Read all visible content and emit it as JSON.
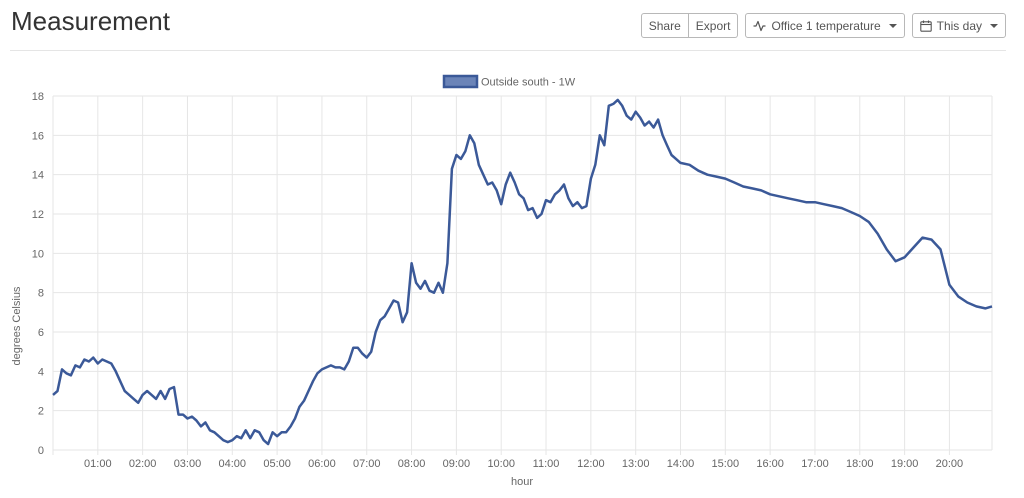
{
  "header": {
    "title": "Measurement",
    "share_label": "Share",
    "export_label": "Export",
    "sensor_label": "Office 1 temperature",
    "range_label": "This day"
  },
  "chart_data": {
    "type": "line",
    "title": "",
    "xlabel": "hour",
    "ylabel": "degrees Celsius",
    "xlim": [
      0,
      20.95
    ],
    "ylim": [
      0,
      18
    ],
    "yticks": [
      0,
      2,
      4,
      6,
      8,
      10,
      12,
      14,
      16,
      18
    ],
    "xticks": [
      "01:00",
      "02:00",
      "03:00",
      "04:00",
      "05:00",
      "06:00",
      "07:00",
      "08:00",
      "09:00",
      "10:00",
      "11:00",
      "12:00",
      "13:00",
      "14:00",
      "15:00",
      "16:00",
      "17:00",
      "18:00",
      "19:00",
      "20:00"
    ],
    "grid": true,
    "legend": "top-center",
    "series": [
      {
        "name": "Outside south - 1W",
        "color": "#3b5998",
        "points": [
          [
            0.0,
            2.8
          ],
          [
            0.1,
            3.0
          ],
          [
            0.2,
            4.1
          ],
          [
            0.3,
            3.9
          ],
          [
            0.4,
            3.8
          ],
          [
            0.5,
            4.3
          ],
          [
            0.6,
            4.2
          ],
          [
            0.7,
            4.6
          ],
          [
            0.8,
            4.5
          ],
          [
            0.9,
            4.7
          ],
          [
            1.0,
            4.4
          ],
          [
            1.1,
            4.6
          ],
          [
            1.2,
            4.5
          ],
          [
            1.3,
            4.4
          ],
          [
            1.4,
            4.0
          ],
          [
            1.5,
            3.5
          ],
          [
            1.6,
            3.0
          ],
          [
            1.7,
            2.8
          ],
          [
            1.8,
            2.6
          ],
          [
            1.9,
            2.4
          ],
          [
            2.0,
            2.8
          ],
          [
            2.1,
            3.0
          ],
          [
            2.2,
            2.8
          ],
          [
            2.3,
            2.6
          ],
          [
            2.4,
            3.0
          ],
          [
            2.5,
            2.6
          ],
          [
            2.6,
            3.1
          ],
          [
            2.7,
            3.2
          ],
          [
            2.8,
            1.8
          ],
          [
            2.9,
            1.8
          ],
          [
            3.0,
            1.6
          ],
          [
            3.1,
            1.7
          ],
          [
            3.2,
            1.5
          ],
          [
            3.3,
            1.2
          ],
          [
            3.4,
            1.4
          ],
          [
            3.5,
            1.0
          ],
          [
            3.6,
            0.9
          ],
          [
            3.7,
            0.7
          ],
          [
            3.8,
            0.5
          ],
          [
            3.9,
            0.4
          ],
          [
            4.0,
            0.5
          ],
          [
            4.1,
            0.7
          ],
          [
            4.2,
            0.6
          ],
          [
            4.3,
            1.0
          ],
          [
            4.4,
            0.6
          ],
          [
            4.5,
            1.0
          ],
          [
            4.6,
            0.9
          ],
          [
            4.7,
            0.5
          ],
          [
            4.8,
            0.3
          ],
          [
            4.9,
            0.9
          ],
          [
            5.0,
            0.7
          ],
          [
            5.1,
            0.9
          ],
          [
            5.2,
            0.9
          ],
          [
            5.3,
            1.2
          ],
          [
            5.4,
            1.6
          ],
          [
            5.5,
            2.2
          ],
          [
            5.6,
            2.5
          ],
          [
            5.7,
            3.0
          ],
          [
            5.8,
            3.5
          ],
          [
            5.9,
            3.9
          ],
          [
            6.0,
            4.1
          ],
          [
            6.1,
            4.2
          ],
          [
            6.2,
            4.3
          ],
          [
            6.3,
            4.2
          ],
          [
            6.4,
            4.2
          ],
          [
            6.5,
            4.1
          ],
          [
            6.6,
            4.5
          ],
          [
            6.7,
            5.2
          ],
          [
            6.8,
            5.2
          ],
          [
            6.9,
            4.9
          ],
          [
            7.0,
            4.7
          ],
          [
            7.1,
            5.0
          ],
          [
            7.2,
            6.0
          ],
          [
            7.3,
            6.6
          ],
          [
            7.4,
            6.8
          ],
          [
            7.5,
            7.2
          ],
          [
            7.6,
            7.6
          ],
          [
            7.7,
            7.5
          ],
          [
            7.8,
            6.5
          ],
          [
            7.9,
            7.0
          ],
          [
            8.0,
            9.5
          ],
          [
            8.1,
            8.5
          ],
          [
            8.2,
            8.2
          ],
          [
            8.3,
            8.6
          ],
          [
            8.4,
            8.1
          ],
          [
            8.5,
            8.0
          ],
          [
            8.6,
            8.5
          ],
          [
            8.7,
            8.0
          ],
          [
            8.8,
            9.5
          ],
          [
            8.9,
            14.3
          ],
          [
            9.0,
            15.0
          ],
          [
            9.1,
            14.8
          ],
          [
            9.2,
            15.2
          ],
          [
            9.3,
            16.0
          ],
          [
            9.4,
            15.6
          ],
          [
            9.5,
            14.5
          ],
          [
            9.6,
            14.0
          ],
          [
            9.7,
            13.5
          ],
          [
            9.8,
            13.6
          ],
          [
            9.9,
            13.2
          ],
          [
            10.0,
            12.5
          ],
          [
            10.1,
            13.5
          ],
          [
            10.2,
            14.1
          ],
          [
            10.3,
            13.6
          ],
          [
            10.4,
            13.0
          ],
          [
            10.5,
            12.8
          ],
          [
            10.6,
            12.2
          ],
          [
            10.7,
            12.3
          ],
          [
            10.8,
            11.8
          ],
          [
            10.9,
            12.0
          ],
          [
            11.0,
            12.7
          ],
          [
            11.1,
            12.6
          ],
          [
            11.2,
            13.0
          ],
          [
            11.3,
            13.2
          ],
          [
            11.4,
            13.5
          ],
          [
            11.5,
            12.8
          ],
          [
            11.6,
            12.4
          ],
          [
            11.7,
            12.6
          ],
          [
            11.8,
            12.3
          ],
          [
            11.9,
            12.4
          ],
          [
            12.0,
            13.8
          ],
          [
            12.1,
            14.5
          ],
          [
            12.2,
            16.0
          ],
          [
            12.3,
            15.5
          ],
          [
            12.4,
            17.5
          ],
          [
            12.5,
            17.6
          ],
          [
            12.6,
            17.8
          ],
          [
            12.7,
            17.5
          ],
          [
            12.8,
            17.0
          ],
          [
            12.9,
            16.8
          ],
          [
            13.0,
            17.2
          ],
          [
            13.1,
            16.9
          ],
          [
            13.2,
            16.5
          ],
          [
            13.3,
            16.7
          ],
          [
            13.4,
            16.4
          ],
          [
            13.5,
            16.8
          ],
          [
            13.6,
            16.0
          ],
          [
            13.7,
            15.5
          ],
          [
            13.8,
            15.0
          ],
          [
            13.9,
            14.8
          ],
          [
            14.0,
            14.6
          ],
          [
            14.2,
            14.5
          ],
          [
            14.4,
            14.2
          ],
          [
            14.6,
            14.0
          ],
          [
            14.8,
            13.9
          ],
          [
            15.0,
            13.8
          ],
          [
            15.2,
            13.6
          ],
          [
            15.4,
            13.4
          ],
          [
            15.6,
            13.3
          ],
          [
            15.8,
            13.2
          ],
          [
            16.0,
            13.0
          ],
          [
            16.2,
            12.9
          ],
          [
            16.4,
            12.8
          ],
          [
            16.6,
            12.7
          ],
          [
            16.8,
            12.6
          ],
          [
            17.0,
            12.6
          ],
          [
            17.2,
            12.5
          ],
          [
            17.4,
            12.4
          ],
          [
            17.6,
            12.3
          ],
          [
            17.8,
            12.1
          ],
          [
            18.0,
            11.9
          ],
          [
            18.2,
            11.6
          ],
          [
            18.4,
            11.0
          ],
          [
            18.6,
            10.2
          ],
          [
            18.8,
            9.6
          ],
          [
            19.0,
            9.8
          ],
          [
            19.2,
            10.3
          ],
          [
            19.4,
            10.8
          ],
          [
            19.6,
            10.7
          ],
          [
            19.8,
            10.2
          ],
          [
            20.0,
            8.4
          ],
          [
            20.2,
            7.8
          ],
          [
            20.4,
            7.5
          ],
          [
            20.6,
            7.3
          ],
          [
            20.8,
            7.2
          ],
          [
            20.95,
            7.3
          ]
        ]
      }
    ]
  }
}
